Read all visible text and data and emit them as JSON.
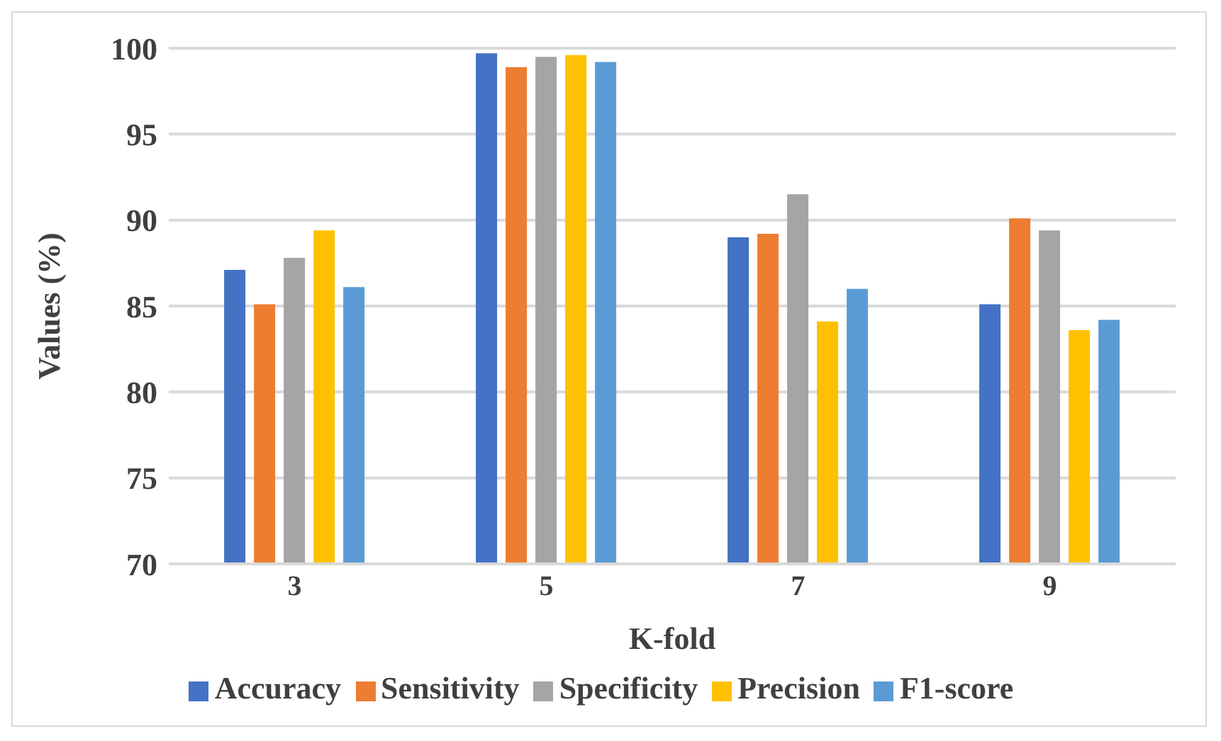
{
  "chart_data": {
    "type": "bar",
    "xlabel": "K-fold",
    "ylabel": "Values (%)",
    "categories": [
      "3",
      "5",
      "7",
      "9"
    ],
    "series": [
      {
        "name": "Accuracy",
        "color": "#4472c4",
        "values": [
          87.1,
          99.7,
          89.0,
          85.1
        ]
      },
      {
        "name": "Sensitivity",
        "color": "#ed7d31",
        "values": [
          85.1,
          98.9,
          89.2,
          90.1
        ]
      },
      {
        "name": "Specificity",
        "color": "#a5a5a5",
        "values": [
          87.8,
          99.5,
          91.5,
          89.4
        ]
      },
      {
        "name": "Precision",
        "color": "#ffc000",
        "values": [
          89.4,
          99.6,
          84.1,
          83.6
        ]
      },
      {
        "name": "F1-score",
        "color": "#5b9bd5",
        "values": [
          86.1,
          99.2,
          86.0,
          84.2
        ]
      }
    ],
    "ylim": [
      70,
      100
    ],
    "yticks": [
      70,
      75,
      80,
      85,
      90,
      95,
      100
    ],
    "grid": "y",
    "legend": "bottom"
  }
}
